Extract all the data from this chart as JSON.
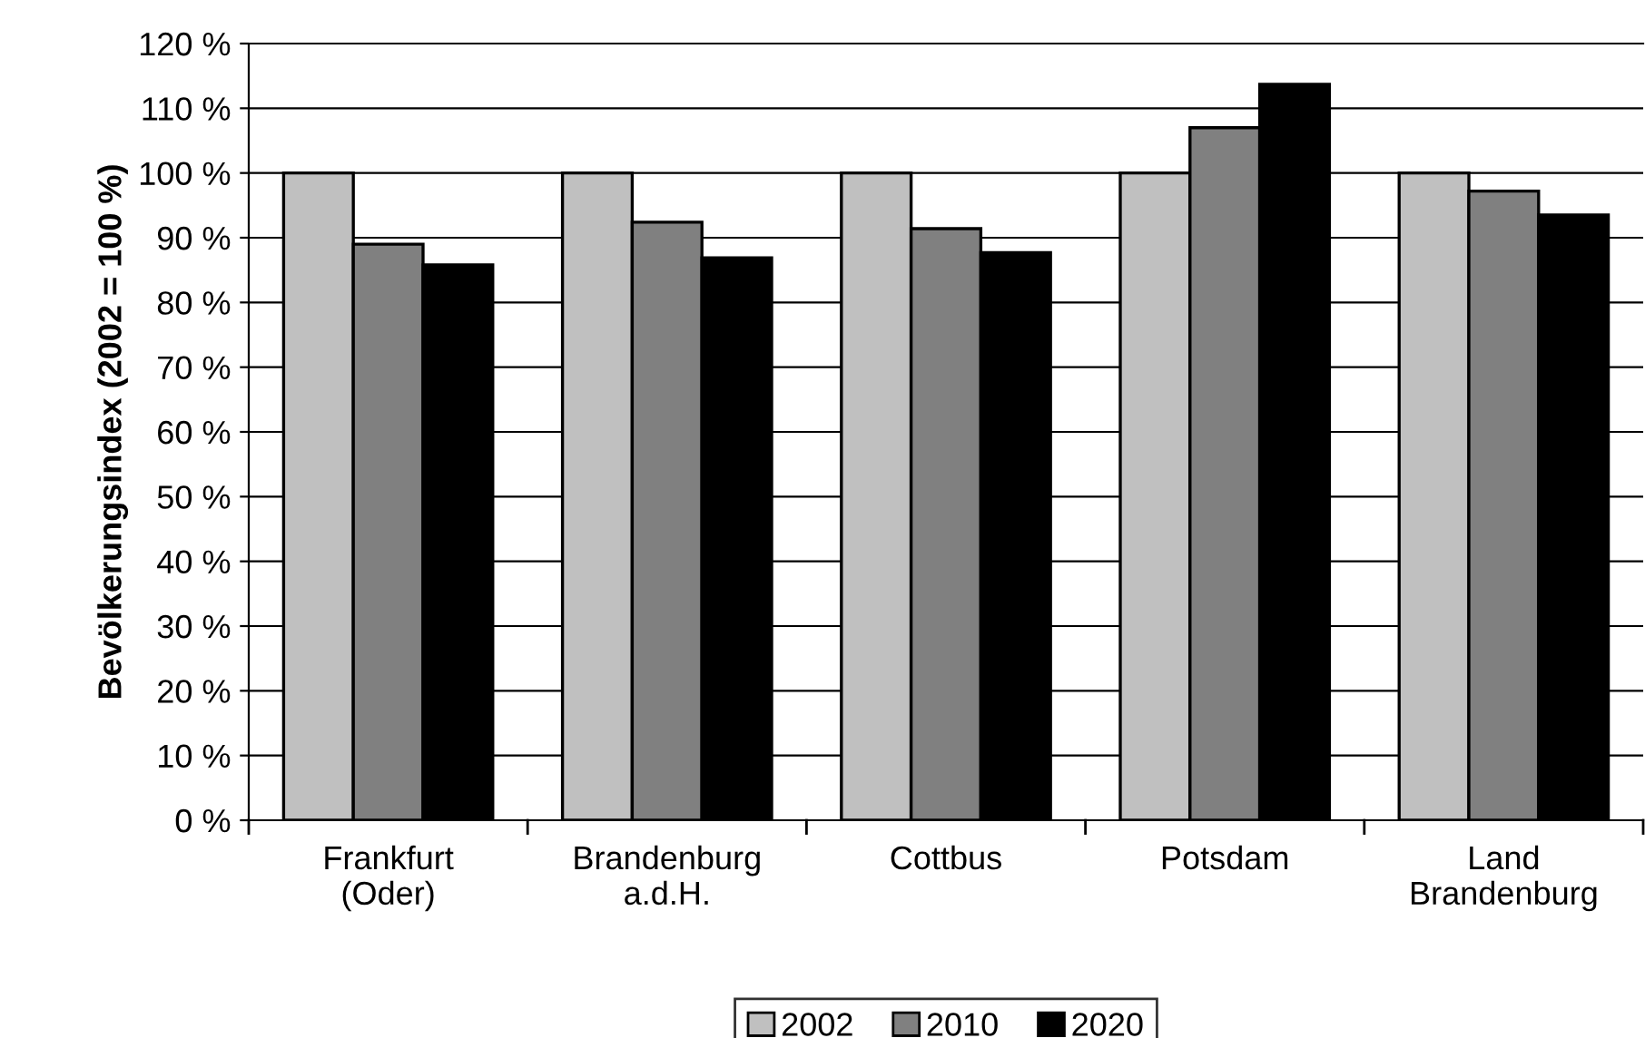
{
  "chart_data": {
    "type": "bar",
    "ylabel": "Bevölkerungsindex (2002 = 100 %)",
    "categories": [
      "Frankfurt\n(Oder)",
      "Brandenburg\na.d.H.",
      "Cottbus",
      "Potsdam",
      "Land\nBrandenburg"
    ],
    "series": [
      {
        "name": "2002",
        "color": "#c0c0c0",
        "values": [
          100,
          100,
          100,
          100,
          100
        ]
      },
      {
        "name": "2010",
        "color": "#808080",
        "values": [
          89.0,
          92.4,
          91.4,
          107.0,
          97.2
        ]
      },
      {
        "name": "2020",
        "color": "#000000",
        "values": [
          85.8,
          86.9,
          87.7,
          113.7,
          93.5
        ]
      }
    ],
    "ylim": [
      0,
      120
    ],
    "yticks": [
      {
        "value": 0,
        "label": "0 %"
      },
      {
        "value": 10,
        "label": "10 %"
      },
      {
        "value": 20,
        "label": "20 %"
      },
      {
        "value": 30,
        "label": "30 %"
      },
      {
        "value": 40,
        "label": "40 %"
      },
      {
        "value": 50,
        "label": "50 %"
      },
      {
        "value": 60,
        "label": "60 %"
      },
      {
        "value": 70,
        "label": "70 %"
      },
      {
        "value": 80,
        "label": "80 %"
      },
      {
        "value": 90,
        "label": "90 %"
      },
      {
        "value": 100,
        "label": "100 %"
      },
      {
        "value": 110,
        "label": "110 %"
      },
      {
        "value": 120,
        "label": "120 %"
      }
    ],
    "grid": "y",
    "legend": "bottom"
  }
}
